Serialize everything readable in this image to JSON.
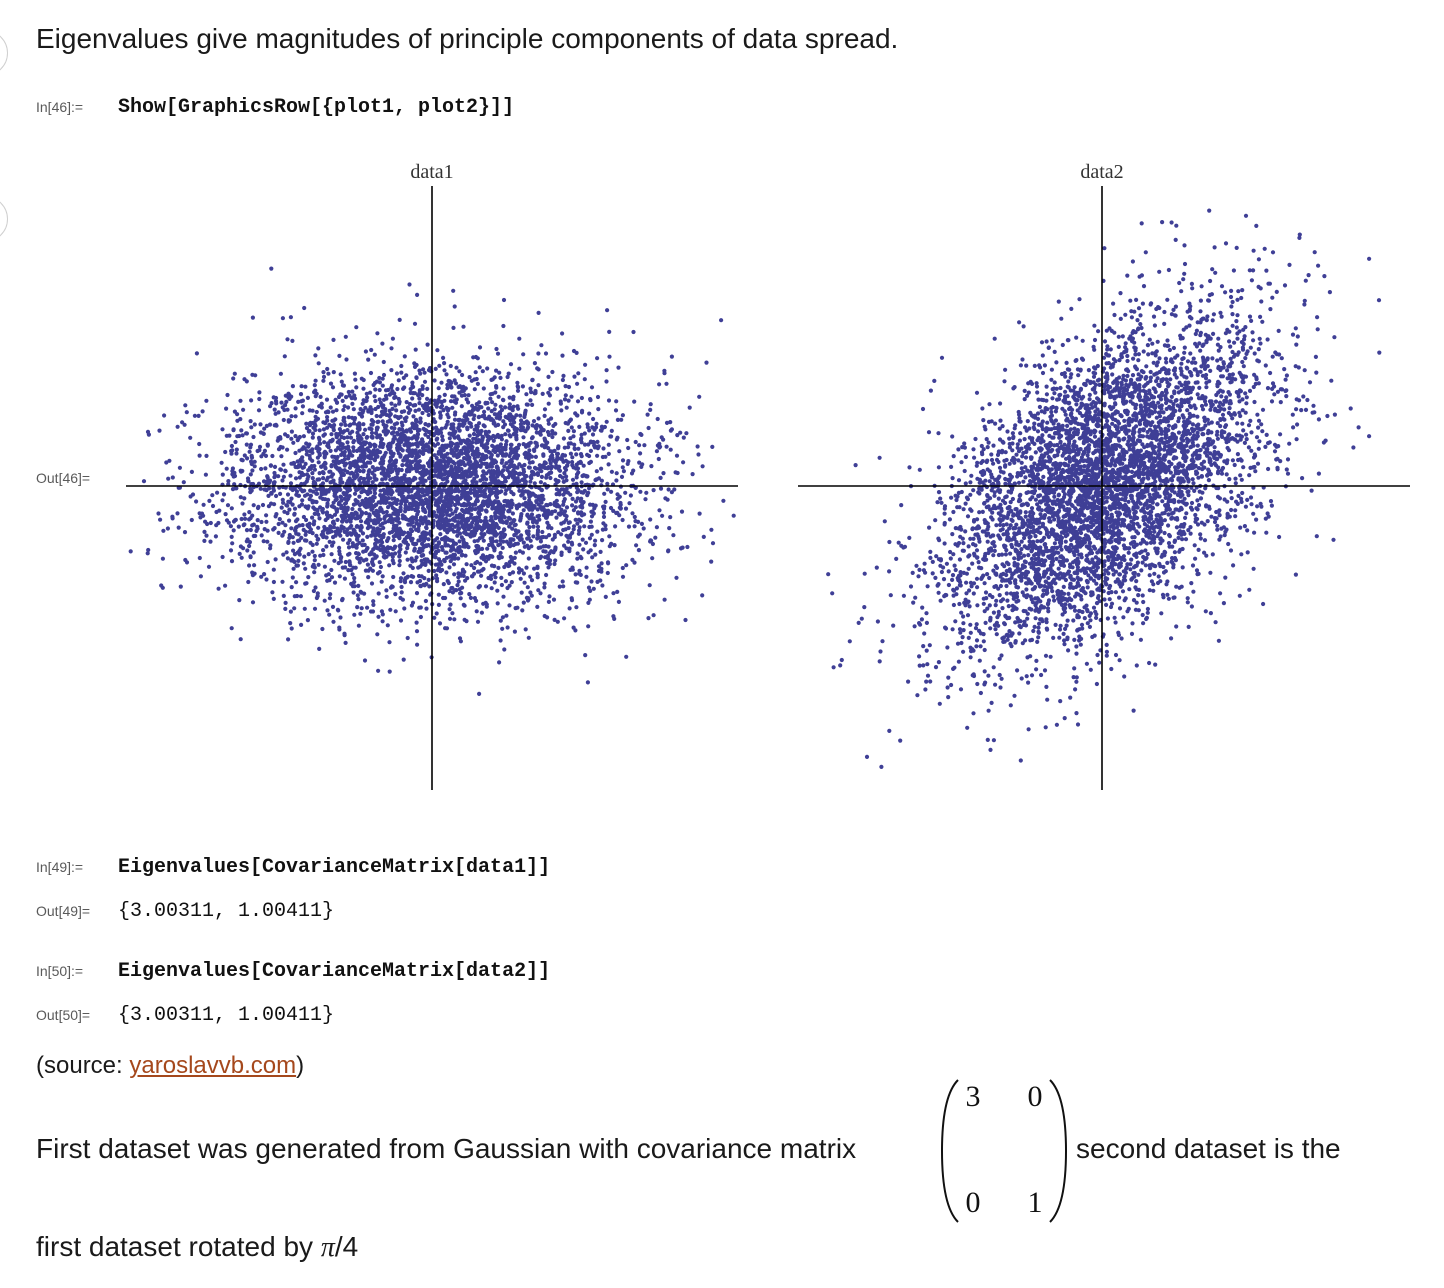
{
  "intro": "Eigenvalues give magnitudes of principle components of data spread.",
  "cells": {
    "in46": {
      "label": "In[46]:=",
      "code": "Show[GraphicsRow[{plot1, plot2}]]"
    },
    "out46": {
      "label": "Out[46]="
    },
    "in49": {
      "label": "In[49]:=",
      "code": "Eigenvalues[CovarianceMatrix[data1]]"
    },
    "out49": {
      "label": "Out[49]=",
      "value": "{3.00311, 1.00411}"
    },
    "in50": {
      "label": "In[50]:=",
      "code": "Eigenvalues[CovarianceMatrix[data2]]"
    },
    "out50": {
      "label": "Out[50]=",
      "value": "{3.00311, 1.00411}"
    }
  },
  "chart_data": [
    {
      "type": "scatter",
      "title": "data1",
      "point_color": "#3f3f96",
      "distribution": "gaussian",
      "covariance": [
        [
          3,
          0
        ],
        [
          0,
          1
        ]
      ],
      "mean": [
        0,
        0
      ],
      "axes_only": true
    },
    {
      "type": "scatter",
      "title": "data2",
      "point_color": "#3f3f96",
      "distribution": "gaussian",
      "covariance": [
        [
          2,
          1
        ],
        [
          1,
          2
        ]
      ],
      "mean": [
        0,
        0
      ],
      "axes_only": true
    }
  ],
  "source": {
    "prefix": "(source: ",
    "link_text": "yaroslavvb.com",
    "suffix": ")"
  },
  "paragraph": {
    "part1": "First dataset was generated from Gaussian with covariance matrix",
    "part2": "second dataset is the",
    "line2_prefix": "first dataset rotated by ",
    "pi_symbol": "π",
    "line2_suffix": "/4",
    "matrix": [
      [
        "3",
        "0"
      ],
      [
        "0",
        "1"
      ]
    ]
  },
  "colors": {
    "link": "#a5481c",
    "points": "#3f3f96",
    "label": "#5a5a5a"
  }
}
